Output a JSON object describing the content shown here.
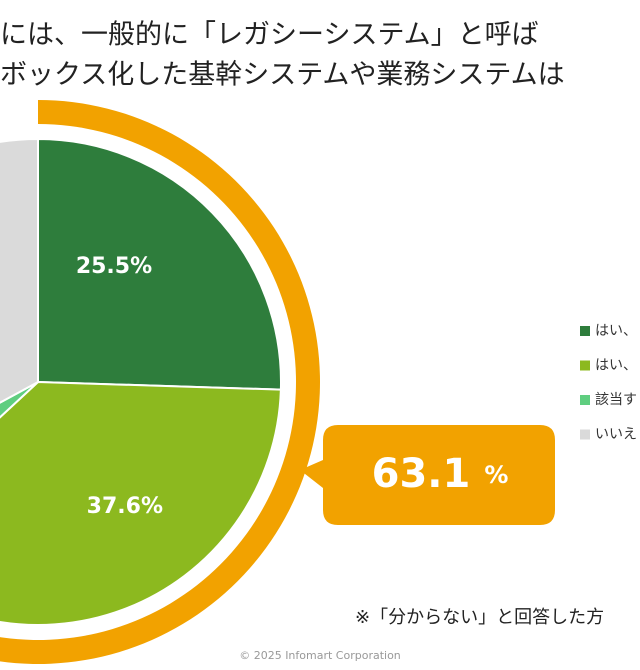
{
  "chart_data": {
    "type": "pie",
    "title_lines": [
      "には、一般的に「レガシーシステム」と呼ば",
      "ボックス化した基幹システムや業務システムは"
    ],
    "categories": [
      "はい、",
      "はい、",
      "該当す",
      "いいえ"
    ],
    "values": [
      25.5,
      37.6,
      4,
      32.9
    ],
    "value_labels": [
      "25.5%",
      "37.6%",
      null,
      null
    ],
    "colors": [
      "#2e7d3c",
      "#8cb91f",
      "#5fce80",
      "#dadada"
    ],
    "highlight": {
      "value": "63.1",
      "unit": "%",
      "color": "#f2a200"
    },
    "note": "※「分からない」と回答した方",
    "footer": "© 2025 Infomart Corporation"
  }
}
